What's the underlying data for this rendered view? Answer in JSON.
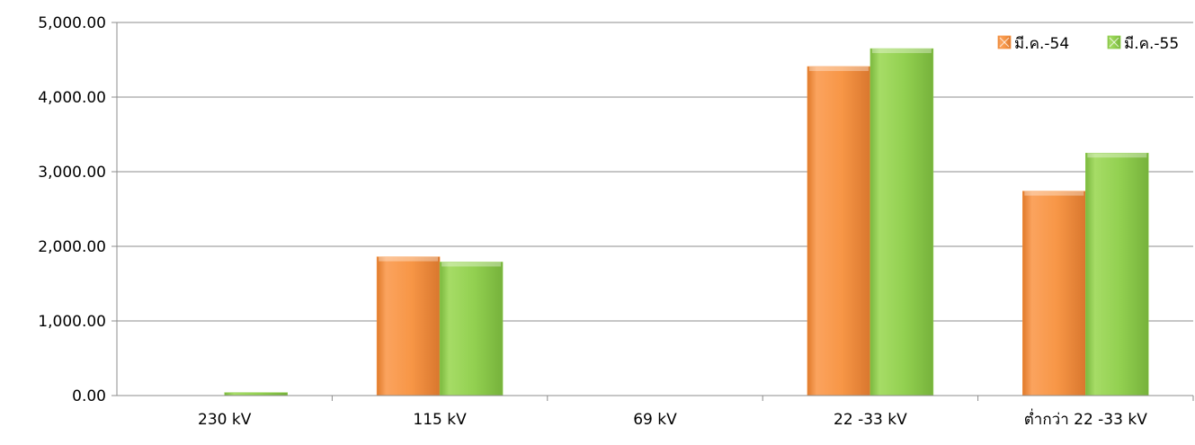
{
  "chart_data": {
    "type": "bar",
    "categories": [
      "230 kV",
      "115 kV",
      "69 kV",
      "22 -33 kV",
      "ต่ำกว่า 22 -33 kV"
    ],
    "series": [
      {
        "name": "มี.ค.-54",
        "color": "#f79646",
        "values": [
          0,
          1860,
          0,
          4410,
          2740
        ]
      },
      {
        "name": "มี.ค.-55",
        "color": "#92d050",
        "values": [
          40,
          1790,
          0,
          4650,
          3250
        ]
      }
    ],
    "ylim": [
      0,
      5000
    ],
    "yticks": [
      "0.00",
      "1,000.00",
      "2,000.00",
      "3,000.00",
      "4,000.00",
      "5,000.00"
    ],
    "title": "",
    "xlabel": "",
    "ylabel": "",
    "grid": true,
    "legend_position": "top-right"
  }
}
